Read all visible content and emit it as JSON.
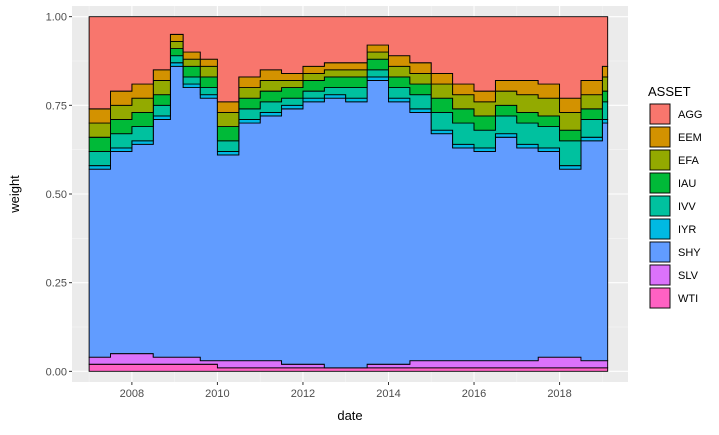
{
  "chart_data": {
    "type": "area",
    "subtype": "stacked step area",
    "xlabel": "date",
    "ylabel": "weight",
    "xlim": [
      2006.6,
      2019.6
    ],
    "ylim": [
      -0.03,
      1.03
    ],
    "x_ticks": [
      2008,
      2010,
      2012,
      2014,
      2016,
      2018
    ],
    "x_tick_labels": [
      "2008",
      "2010",
      "2012",
      "2014",
      "2016",
      "2018"
    ],
    "y_ticks": [
      0,
      0.25,
      0.5,
      0.75,
      1.0
    ],
    "y_tick_labels": [
      "0.00",
      "0.25",
      "0.50",
      "0.75",
      "1.00"
    ],
    "grid": true,
    "panel_background": "#ebebeb",
    "legend": {
      "title": "ASSET",
      "position": "right",
      "entries": [
        "AGG",
        "EEM",
        "EFA",
        "IAU",
        "IVV",
        "IYR",
        "SHY",
        "SLV",
        "WTI"
      ]
    },
    "colors": {
      "AGG": "#F8766D",
      "EEM": "#D39200",
      "EFA": "#93AA00",
      "IAU": "#00BA38",
      "IVV": "#00C19F",
      "IYR": "#00B9E3",
      "SHY": "#619CFF",
      "SLV": "#DB72FB",
      "WTI": "#FF61C3"
    },
    "stack_order_bottom_to_top": [
      "WTI",
      "SLV",
      "SHY",
      "IYR",
      "IVV",
      "IAU",
      "EFA",
      "EEM",
      "AGG"
    ],
    "x": [
      2007.0,
      2007.5,
      2008.0,
      2008.5,
      2008.9,
      2009.2,
      2009.6,
      2010.0,
      2010.5,
      2011.0,
      2011.5,
      2012.0,
      2012.5,
      2013.0,
      2013.5,
      2014.0,
      2014.5,
      2015.0,
      2015.5,
      2016.0,
      2016.5,
      2017.0,
      2017.5,
      2018.0,
      2018.5,
      2019.0
    ],
    "series": [
      {
        "name": "WTI",
        "values": [
          0.02,
          0.02,
          0.02,
          0.02,
          0.02,
          0.02,
          0.02,
          0.01,
          0.01,
          0.01,
          0.01,
          0.01,
          0.01,
          0.01,
          0.01,
          0.01,
          0.01,
          0.01,
          0.01,
          0.01,
          0.01,
          0.01,
          0.01,
          0.01,
          0.01,
          0.01
        ]
      },
      {
        "name": "SLV",
        "values": [
          0.02,
          0.03,
          0.03,
          0.02,
          0.02,
          0.02,
          0.01,
          0.02,
          0.02,
          0.02,
          0.01,
          0.01,
          0.0,
          0.0,
          0.01,
          0.01,
          0.02,
          0.02,
          0.02,
          0.02,
          0.02,
          0.02,
          0.03,
          0.03,
          0.02,
          0.02
        ]
      },
      {
        "name": "SHY",
        "values": [
          0.53,
          0.57,
          0.59,
          0.67,
          0.82,
          0.76,
          0.74,
          0.58,
          0.67,
          0.69,
          0.72,
          0.74,
          0.76,
          0.75,
          0.8,
          0.74,
          0.7,
          0.64,
          0.6,
          0.59,
          0.63,
          0.6,
          0.58,
          0.53,
          0.62,
          0.67
        ]
      },
      {
        "name": "IYR",
        "values": [
          0.01,
          0.01,
          0.01,
          0.01,
          0.01,
          0.01,
          0.01,
          0.01,
          0.01,
          0.01,
          0.01,
          0.01,
          0.01,
          0.01,
          0.01,
          0.01,
          0.01,
          0.01,
          0.01,
          0.01,
          0.01,
          0.01,
          0.01,
          0.01,
          0.01,
          0.01
        ]
      },
      {
        "name": "IVV",
        "values": [
          0.04,
          0.04,
          0.04,
          0.03,
          0.02,
          0.02,
          0.02,
          0.03,
          0.03,
          0.03,
          0.02,
          0.02,
          0.02,
          0.03,
          0.02,
          0.03,
          0.04,
          0.05,
          0.06,
          0.05,
          0.05,
          0.06,
          0.06,
          0.07,
          0.05,
          0.05
        ]
      },
      {
        "name": "IAU",
        "values": [
          0.04,
          0.04,
          0.04,
          0.03,
          0.02,
          0.03,
          0.03,
          0.04,
          0.03,
          0.03,
          0.03,
          0.03,
          0.03,
          0.03,
          0.03,
          0.03,
          0.03,
          0.04,
          0.04,
          0.04,
          0.03,
          0.03,
          0.03,
          0.03,
          0.03,
          0.03
        ]
      },
      {
        "name": "EFA",
        "values": [
          0.04,
          0.04,
          0.04,
          0.04,
          0.02,
          0.02,
          0.03,
          0.04,
          0.03,
          0.03,
          0.02,
          0.02,
          0.02,
          0.02,
          0.02,
          0.03,
          0.03,
          0.04,
          0.04,
          0.04,
          0.04,
          0.05,
          0.05,
          0.05,
          0.04,
          0.04
        ]
      },
      {
        "name": "EEM",
        "values": [
          0.04,
          0.04,
          0.04,
          0.03,
          0.02,
          0.02,
          0.02,
          0.03,
          0.03,
          0.03,
          0.02,
          0.02,
          0.02,
          0.02,
          0.02,
          0.03,
          0.03,
          0.03,
          0.03,
          0.03,
          0.03,
          0.04,
          0.04,
          0.04,
          0.04,
          0.03
        ]
      },
      {
        "name": "AGG",
        "values": [
          0.26,
          0.21,
          0.19,
          0.15,
          0.05,
          0.1,
          0.12,
          0.24,
          0.17,
          0.15,
          0.16,
          0.14,
          0.13,
          0.13,
          0.08,
          0.11,
          0.13,
          0.16,
          0.19,
          0.21,
          0.18,
          0.18,
          0.19,
          0.23,
          0.18,
          0.14
        ]
      }
    ]
  }
}
